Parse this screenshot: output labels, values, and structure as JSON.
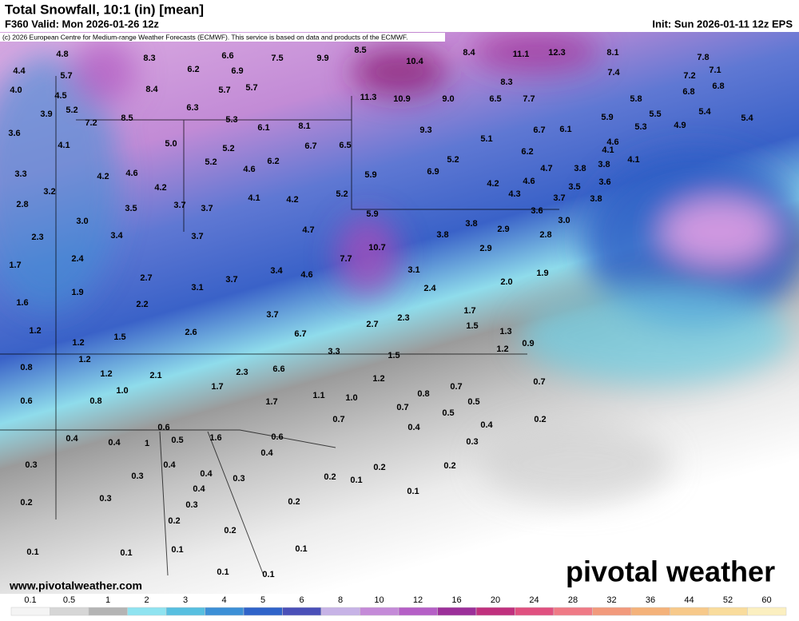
{
  "header": {
    "title": "Total Snowfall, 10:1 (in) [mean]",
    "valid": "F360 Valid: Mon 2026-01-26 12z",
    "init": "Init: Sun 2026-01-11 12z EPS",
    "copyright": "(c) 2026 European Centre for Medium-range Weather Forecasts (ECMWF). This service is based on data and products of the ECMWF."
  },
  "map_labels": [
    "4.8",
    "8.3",
    "6.6",
    "7.5",
    "9.9",
    "8.5",
    "10.4",
    "8.4",
    "11.1",
    "12.3",
    "8.1",
    "7.8",
    "4.4",
    "5.7",
    "6.2",
    "6.9",
    "7.4",
    "7.2",
    "7.1",
    "4.0",
    "4.5",
    "8.4",
    "5.7",
    "5.7",
    "8.3",
    "6.8",
    "6.8",
    "11.3",
    "10.9",
    "9.0",
    "6.5",
    "7.7",
    "5.8",
    "5.2",
    "3.9",
    "6.3",
    "5.5",
    "5.4",
    "5.9",
    "8.5",
    "7.2",
    "5.3",
    "6.1",
    "8.1",
    "4.9",
    "5.3",
    "9.3",
    "6.7",
    "6.1",
    "5.4",
    "3.6",
    "4.1",
    "5.0",
    "5.2",
    "6.7",
    "6.5",
    "5.1",
    "4.6",
    "6.2",
    "4.1",
    "4.1",
    "5.2",
    "6.2",
    "4.6",
    "5.2",
    "6.9",
    "4.7",
    "3.8",
    "3.8",
    "5.9",
    "3.3",
    "4.2",
    "4.6",
    "4.2",
    "4.2",
    "4.6",
    "3.6",
    "3.5",
    "3.2",
    "4.1",
    "4.2",
    "5.2",
    "4.3",
    "3.7",
    "3.8",
    "2.8",
    "3.5",
    "3.7",
    "3.7",
    "5.9",
    "3.6",
    "3.0",
    "3.0",
    "4.7",
    "3.8",
    "2.9",
    "3.8",
    "2.8",
    "2.3",
    "3.4",
    "3.7",
    "10.7",
    "2.9",
    "2.4",
    "7.7",
    "3.4",
    "4.6",
    "3.1",
    "1.7",
    "2.7",
    "3.7",
    "1.9",
    "2.0",
    "1.9",
    "3.1",
    "2.4",
    "1.6",
    "2.2",
    "3.7",
    "1.7",
    "6.7",
    "2.7",
    "2.3",
    "1.5",
    "1.2",
    "1.5",
    "2.6",
    "1.3",
    "1.2",
    "3.3",
    "0.9",
    "1.2",
    "1.2",
    "1.5",
    "0.8",
    "6.6",
    "2.3",
    "1.2",
    "2.1",
    "1.2",
    "1.7",
    "1.0",
    "0.7",
    "0.7",
    "0.8",
    "1.1",
    "1.0",
    "0.6",
    "0.8",
    "1.7",
    "0.5",
    "0.7",
    "0.5",
    "0.7",
    "0.4",
    "0.2",
    "0.4",
    "0.6",
    "0.6",
    "1.6",
    "0.5",
    "0.4",
    "0.4",
    "1",
    "0.3",
    "0.4",
    "0.3",
    "0.4",
    "0.2",
    "0.2",
    "0.4",
    "0.3",
    "0.3",
    "0.2",
    "0.1",
    "0.4",
    "0.1",
    "0.2",
    "0.3",
    "0.3",
    "0.2",
    "0.2",
    "0.2",
    "0.1",
    "0.1",
    "0.1",
    "0.1",
    "0.1",
    "0.1"
  ],
  "footer": {
    "website": "www.pivotalweather.com",
    "logo": "pivotal weather"
  },
  "colorbar": {
    "labels": [
      "0.1",
      "0.5",
      "1",
      "2",
      "3",
      "4",
      "5",
      "6",
      "8",
      "10",
      "12",
      "16",
      "20",
      "24",
      "28",
      "32",
      "36",
      "44",
      "52",
      "60"
    ],
    "colors": [
      "#f4f4f4",
      "#d6d6d6",
      "#b4b4b4",
      "#8fe3f0",
      "#57bfe0",
      "#3c8fd6",
      "#2f63c9",
      "#4a4fb8",
      "#c7b3e6",
      "#c48ad8",
      "#b55fc6",
      "#9c2f9a",
      "#c0307e",
      "#e05080",
      "#ef7a86",
      "#f29a7c",
      "#f4b27a",
      "#f7c98a",
      "#f9dc9c",
      "#fbefc0"
    ]
  }
}
